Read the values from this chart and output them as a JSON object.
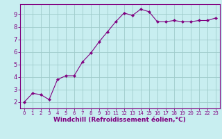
{
  "x": [
    0,
    1,
    2,
    3,
    4,
    5,
    6,
    7,
    8,
    9,
    10,
    11,
    12,
    13,
    14,
    15,
    16,
    17,
    18,
    19,
    20,
    21,
    22,
    23
  ],
  "y": [
    2.0,
    2.7,
    2.6,
    2.2,
    3.8,
    4.1,
    4.1,
    5.2,
    5.9,
    6.8,
    7.6,
    8.4,
    9.1,
    8.9,
    9.4,
    9.2,
    8.4,
    8.4,
    8.5,
    8.4,
    8.4,
    8.5,
    8.5,
    8.7
  ],
  "line_color": "#800080",
  "marker": "o",
  "marker_size": 2.2,
  "bg_color": "#c8eef0",
  "grid_color": "#a0cccc",
  "xlabel": "Windchill (Refroidissement éolien,°C)",
  "xlim": [
    -0.5,
    23.5
  ],
  "ylim": [
    1.5,
    9.8
  ],
  "yticks": [
    2,
    3,
    4,
    5,
    6,
    7,
    8,
    9
  ],
  "xticks": [
    0,
    1,
    2,
    3,
    4,
    5,
    6,
    7,
    8,
    9,
    10,
    11,
    12,
    13,
    14,
    15,
    16,
    17,
    18,
    19,
    20,
    21,
    22,
    23
  ],
  "tick_color": "#800080",
  "label_color": "#800080",
  "border_color": "#800080",
  "xlabel_fontsize": 6.5,
  "tick_fontsize": 6.0,
  "xtick_fontsize": 5.0
}
